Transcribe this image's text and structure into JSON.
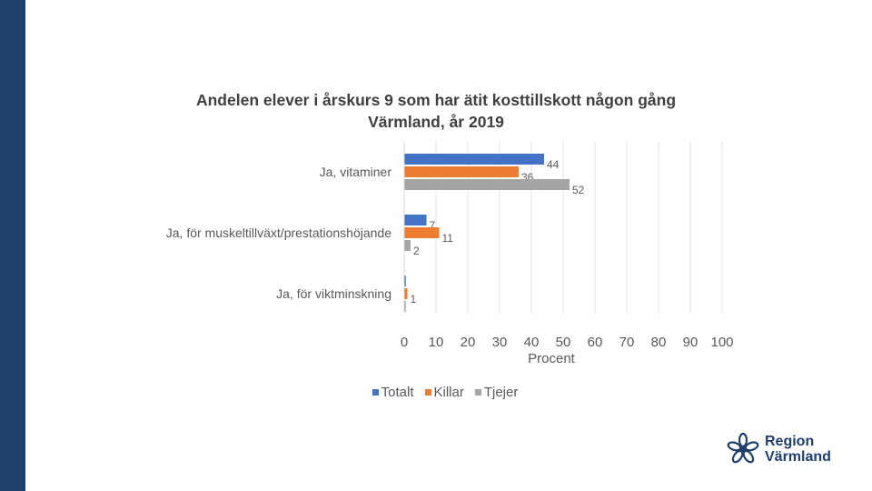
{
  "chart_data": {
    "type": "bar",
    "orientation": "horizontal",
    "title": "Andelen elever i årskurs 9 som har ätit kosttillskott någon gång Värmland, år 2019",
    "categories": [
      "Ja, vitaminer",
      "Ja, för muskeltillväxt/prestationshöjande",
      "Ja, för viktminskning"
    ],
    "series": [
      {
        "name": "Totalt",
        "color": "#4472c4",
        "values": [
          44,
          7,
          0.5
        ]
      },
      {
        "name": "Killar",
        "color": "#ed7d31",
        "values": [
          36,
          11,
          1
        ]
      },
      {
        "name": "Tjejer",
        "color": "#a5a5a5",
        "values": [
          52,
          2,
          0.5
        ]
      }
    ],
    "data_labels": [
      [
        "44",
        "36",
        "52"
      ],
      [
        "7",
        "11",
        "2"
      ],
      [
        "",
        "1",
        ""
      ]
    ],
    "xlabel": "Procent",
    "xlim": [
      0,
      100
    ],
    "xticks": [
      "0",
      "10",
      "20",
      "30",
      "40",
      "50",
      "60",
      "70",
      "80",
      "90",
      "100"
    ],
    "grid": true,
    "legend_position": "bottom"
  },
  "logo": {
    "line1": "Region",
    "line2": "Värmland"
  }
}
